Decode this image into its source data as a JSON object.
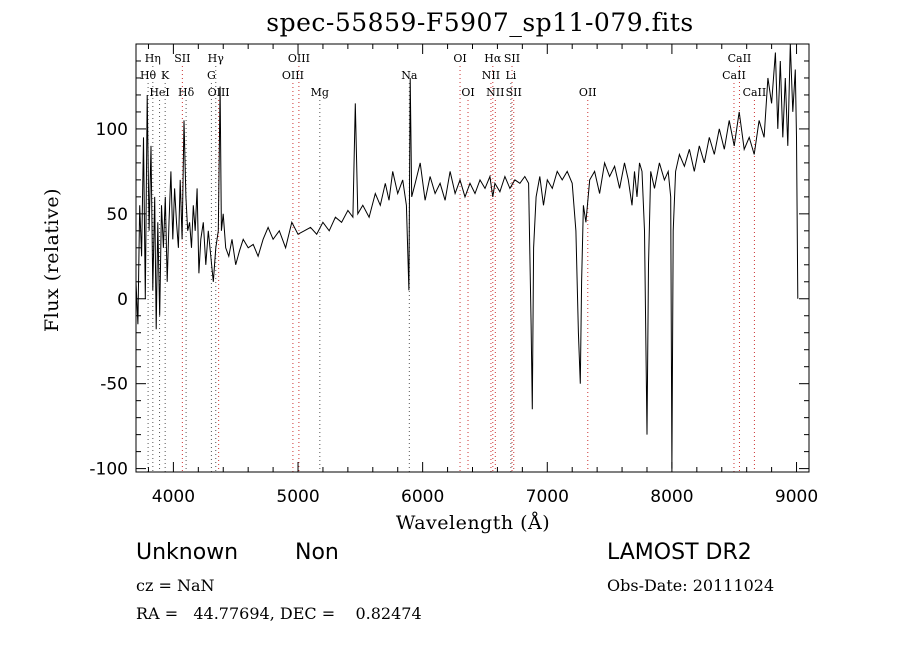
{
  "chart_data": {
    "type": "line",
    "title": "spec-55859-F5907_sp11-079.fits",
    "xlabel": "Wavelength (Å)",
    "ylabel": "Flux (relative)",
    "xlim": [
      3700,
      9100
    ],
    "ylim": [
      -102,
      150
    ],
    "xticks": [
      4000,
      5000,
      6000,
      7000,
      8000,
      9000
    ],
    "yticks": [
      -100,
      -50,
      0,
      50,
      100
    ],
    "grid": false,
    "line_color": "#000000",
    "marker_colors": {
      "emission": "#cc3333",
      "absorption": "#555555"
    },
    "spectrum": [
      [
        3700,
        10
      ],
      [
        3715,
        -15
      ],
      [
        3730,
        55
      ],
      [
        3745,
        25
      ],
      [
        3760,
        95
      ],
      [
        3775,
        0
      ],
      [
        3790,
        120
      ],
      [
        3805,
        40
      ],
      [
        3820,
        90
      ],
      [
        3835,
        5
      ],
      [
        3850,
        60
      ],
      [
        3862,
        -18
      ],
      [
        3875,
        45
      ],
      [
        3890,
        -10
      ],
      [
        3905,
        55
      ],
      [
        3920,
        30
      ],
      [
        3935,
        60
      ],
      [
        3950,
        10
      ],
      [
        3965,
        45
      ],
      [
        3980,
        75
      ],
      [
        3995,
        35
      ],
      [
        4010,
        65
      ],
      [
        4025,
        45
      ],
      [
        4040,
        30
      ],
      [
        4055,
        70
      ],
      [
        4070,
        35
      ],
      [
        4085,
        105
      ],
      [
        4100,
        60
      ],
      [
        4115,
        40
      ],
      [
        4130,
        45
      ],
      [
        4145,
        30
      ],
      [
        4160,
        55
      ],
      [
        4175,
        40
      ],
      [
        4190,
        65
      ],
      [
        4205,
        15
      ],
      [
        4220,
        35
      ],
      [
        4240,
        45
      ],
      [
        4260,
        20
      ],
      [
        4280,
        40
      ],
      [
        4300,
        25
      ],
      [
        4320,
        10
      ],
      [
        4340,
        30
      ],
      [
        4360,
        40
      ],
      [
        4375,
        125
      ],
      [
        4385,
        40
      ],
      [
        4400,
        50
      ],
      [
        4420,
        30
      ],
      [
        4445,
        25
      ],
      [
        4470,
        35
      ],
      [
        4500,
        20
      ],
      [
        4530,
        28
      ],
      [
        4560,
        35
      ],
      [
        4600,
        30
      ],
      [
        4640,
        32
      ],
      [
        4680,
        25
      ],
      [
        4720,
        35
      ],
      [
        4760,
        42
      ],
      [
        4800,
        35
      ],
      [
        4850,
        40
      ],
      [
        4900,
        30
      ],
      [
        4950,
        45
      ],
      [
        5000,
        38
      ],
      [
        5050,
        40
      ],
      [
        5100,
        42
      ],
      [
        5150,
        38
      ],
      [
        5200,
        45
      ],
      [
        5250,
        40
      ],
      [
        5300,
        48
      ],
      [
        5350,
        45
      ],
      [
        5400,
        52
      ],
      [
        5440,
        48
      ],
      [
        5460,
        115
      ],
      [
        5480,
        50
      ],
      [
        5520,
        55
      ],
      [
        5570,
        48
      ],
      [
        5620,
        62
      ],
      [
        5660,
        55
      ],
      [
        5700,
        68
      ],
      [
        5730,
        58
      ],
      [
        5760,
        75
      ],
      [
        5800,
        62
      ],
      [
        5840,
        70
      ],
      [
        5870,
        55
      ],
      [
        5890,
        5
      ],
      [
        5900,
        130
      ],
      [
        5912,
        60
      ],
      [
        5940,
        68
      ],
      [
        5980,
        80
      ],
      [
        6020,
        58
      ],
      [
        6060,
        72
      ],
      [
        6100,
        62
      ],
      [
        6140,
        68
      ],
      [
        6180,
        58
      ],
      [
        6220,
        75
      ],
      [
        6260,
        62
      ],
      [
        6300,
        70
      ],
      [
        6340,
        60
      ],
      [
        6380,
        68
      ],
      [
        6420,
        62
      ],
      [
        6460,
        70
      ],
      [
        6500,
        65
      ],
      [
        6540,
        72
      ],
      [
        6563,
        60
      ],
      [
        6580,
        68
      ],
      [
        6620,
        63
      ],
      [
        6660,
        72
      ],
      [
        6700,
        65
      ],
      [
        6740,
        70
      ],
      [
        6780,
        68
      ],
      [
        6820,
        72
      ],
      [
        6850,
        68
      ],
      [
        6870,
        -15
      ],
      [
        6880,
        -65
      ],
      [
        6890,
        30
      ],
      [
        6910,
        60
      ],
      [
        6940,
        72
      ],
      [
        6970,
        55
      ],
      [
        7000,
        70
      ],
      [
        7040,
        65
      ],
      [
        7080,
        75
      ],
      [
        7120,
        70
      ],
      [
        7160,
        75
      ],
      [
        7200,
        68
      ],
      [
        7230,
        40
      ],
      [
        7250,
        -20
      ],
      [
        7265,
        -50
      ],
      [
        7275,
        10
      ],
      [
        7290,
        55
      ],
      [
        7310,
        45
      ],
      [
        7340,
        70
      ],
      [
        7380,
        75
      ],
      [
        7420,
        62
      ],
      [
        7460,
        80
      ],
      [
        7500,
        72
      ],
      [
        7540,
        78
      ],
      [
        7580,
        65
      ],
      [
        7620,
        80
      ],
      [
        7650,
        70
      ],
      [
        7680,
        55
      ],
      [
        7700,
        75
      ],
      [
        7720,
        60
      ],
      [
        7740,
        80
      ],
      [
        7760,
        75
      ],
      [
        7780,
        40
      ],
      [
        7800,
        -80
      ],
      [
        7812,
        20
      ],
      [
        7830,
        75
      ],
      [
        7860,
        65
      ],
      [
        7900,
        80
      ],
      [
        7940,
        70
      ],
      [
        7970,
        75
      ],
      [
        7990,
        60
      ],
      [
        8000,
        -100
      ],
      [
        8010,
        40
      ],
      [
        8030,
        75
      ],
      [
        8060,
        85
      ],
      [
        8100,
        78
      ],
      [
        8140,
        88
      ],
      [
        8180,
        75
      ],
      [
        8220,
        90
      ],
      [
        8260,
        80
      ],
      [
        8300,
        95
      ],
      [
        8340,
        85
      ],
      [
        8380,
        100
      ],
      [
        8420,
        88
      ],
      [
        8460,
        105
      ],
      [
        8500,
        90
      ],
      [
        8540,
        110
      ],
      [
        8580,
        88
      ],
      [
        8620,
        95
      ],
      [
        8660,
        85
      ],
      [
        8700,
        105
      ],
      [
        8740,
        95
      ],
      [
        8770,
        130
      ],
      [
        8800,
        115
      ],
      [
        8830,
        145
      ],
      [
        8850,
        100
      ],
      [
        8870,
        140
      ],
      [
        8890,
        95
      ],
      [
        8910,
        130
      ],
      [
        8930,
        90
      ],
      [
        8950,
        150
      ],
      [
        8970,
        110
      ],
      [
        8990,
        135
      ],
      [
        9000,
        95
      ],
      [
        9010,
        0
      ]
    ],
    "line_markers": [
      {
        "label": "Hη",
        "x": 3835,
        "row": 0,
        "kind": "absorption"
      },
      {
        "label": "Hθ",
        "x": 3797,
        "row": 1,
        "kind": "absorption"
      },
      {
        "label": "HeI",
        "x": 3889,
        "row": 2,
        "kind": "absorption"
      },
      {
        "label": "K",
        "x": 3934,
        "row": 1,
        "kind": "absorption"
      },
      {
        "label": "SII",
        "x": 4072,
        "row": 0,
        "kind": "emission"
      },
      {
        "label": "Hδ",
        "x": 4102,
        "row": 2,
        "kind": "absorption"
      },
      {
        "label": "Hγ",
        "x": 4340,
        "row": 0,
        "kind": "absorption"
      },
      {
        "label": "G",
        "x": 4305,
        "row": 1,
        "kind": "absorption"
      },
      {
        "label": "OIII",
        "x": 4363,
        "row": 2,
        "kind": "emission"
      },
      {
        "label": "OIII",
        "x": 5007,
        "row": 0,
        "kind": "emission"
      },
      {
        "label": "OIII",
        "x": 4959,
        "row": 1,
        "kind": "emission"
      },
      {
        "label": "Mg",
        "x": 5175,
        "row": 2,
        "kind": "absorption"
      },
      {
        "label": "Na",
        "x": 5893,
        "row": 1,
        "kind": "absorption"
      },
      {
        "label": "OI",
        "x": 6300,
        "row": 0,
        "kind": "emission"
      },
      {
        "label": "OI",
        "x": 6364,
        "row": 2,
        "kind": "emission"
      },
      {
        "label": "Hα",
        "x": 6563,
        "row": 0,
        "kind": "emission"
      },
      {
        "label": "SII",
        "x": 6717,
        "row": 0,
        "kind": "emission"
      },
      {
        "label": "NII",
        "x": 6548,
        "row": 1,
        "kind": "emission"
      },
      {
        "label": "Li",
        "x": 6708,
        "row": 1,
        "kind": "absorption"
      },
      {
        "label": "NII",
        "x": 6583,
        "row": 2,
        "kind": "emission"
      },
      {
        "label": "SII",
        "x": 6731,
        "row": 2,
        "kind": "emission"
      },
      {
        "label": "OII",
        "x": 7325,
        "row": 2,
        "kind": "emission"
      },
      {
        "label": "CaII",
        "x": 8542,
        "row": 0,
        "kind": "emission"
      },
      {
        "label": "CaII",
        "x": 8498,
        "row": 1,
        "kind": "emission"
      },
      {
        "label": "CaII",
        "x": 8662,
        "row": 2,
        "kind": "emission"
      }
    ]
  },
  "info": {
    "class": "Unknown",
    "subclass": "Non",
    "survey": "LAMOST DR2",
    "cz": "cz = NaN",
    "obs_date": "Obs-Date: 20111024",
    "coords": "RA =   44.77694, DEC =    0.82474"
  }
}
